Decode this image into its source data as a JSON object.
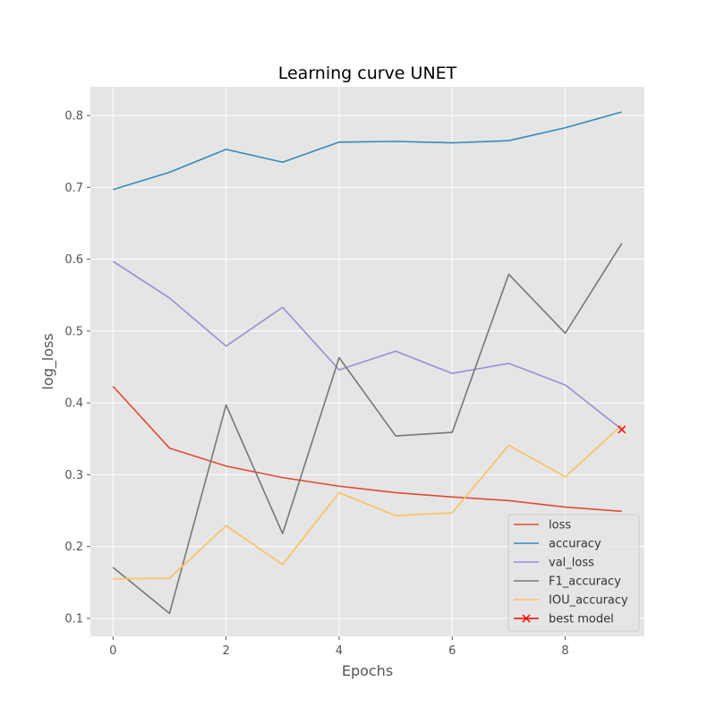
{
  "chart_data": {
    "type": "line",
    "title": "Learning curve UNET",
    "xlabel": "Epochs",
    "ylabel": "log_loss",
    "x": [
      0,
      1,
      2,
      3,
      4,
      5,
      6,
      7,
      8,
      9
    ],
    "xlim": [
      -0.4,
      9.4
    ],
    "ylim": [
      0.075,
      0.84
    ],
    "xticks": [
      0,
      2,
      4,
      6,
      8
    ],
    "yticks": [
      0.1,
      0.2,
      0.3,
      0.4,
      0.5,
      0.6,
      0.7,
      0.8
    ],
    "grid": true,
    "legend_position": "lower-right",
    "series": [
      {
        "name": "loss",
        "color": "#e24a33",
        "values": [
          0.423,
          0.337,
          0.312,
          0.296,
          0.284,
          0.275,
          0.269,
          0.264,
          0.255,
          0.249
        ]
      },
      {
        "name": "accuracy",
        "color": "#348abd",
        "values": [
          0.697,
          0.721,
          0.753,
          0.735,
          0.763,
          0.764,
          0.762,
          0.765,
          0.783,
          0.805
        ]
      },
      {
        "name": "val_loss",
        "color": "#988ed5",
        "values": [
          0.597,
          0.546,
          0.479,
          0.533,
          0.446,
          0.472,
          0.441,
          0.455,
          0.425,
          0.363
        ]
      },
      {
        "name": "F1_accuracy",
        "color": "#777777",
        "values": [
          0.171,
          0.107,
          0.397,
          0.218,
          0.463,
          0.354,
          0.359,
          0.579,
          0.497,
          0.622
        ]
      },
      {
        "name": "IOU_accuracy",
        "color": "#fbc15e",
        "values": [
          0.155,
          0.156,
          0.229,
          0.175,
          0.275,
          0.243,
          0.247,
          0.341,
          0.297,
          0.369
        ]
      }
    ],
    "best_model": {
      "name": "best model",
      "color": "#ff0000",
      "x": 9,
      "y": 0.363,
      "marker": "x"
    }
  }
}
